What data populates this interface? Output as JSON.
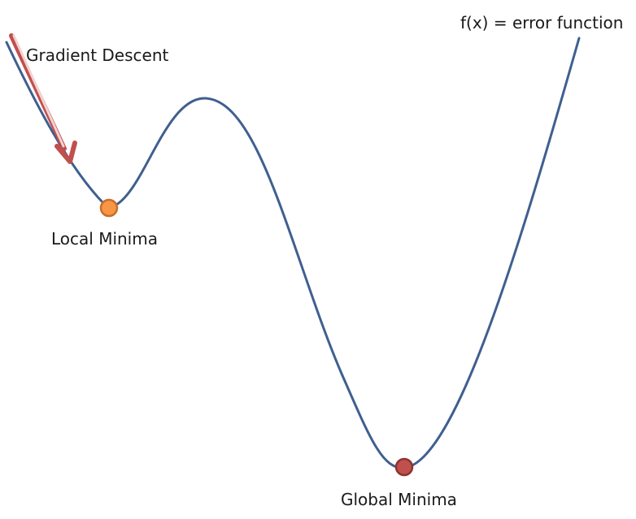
{
  "labels": {
    "function": "f(x) = error function",
    "gradient_descent": "Gradient Descent",
    "local_minima": "Local Minima",
    "global_minima": "Global Minima"
  },
  "colors": {
    "curve": "#3f5f8f",
    "arrow": "#c0504d",
    "arrow_highlight": "#f2d4d2",
    "local_minima_fill": "#f79646",
    "local_minima_stroke": "#c77028",
    "global_minima_fill": "#c0504d",
    "global_minima_stroke": "#8c3330"
  }
}
